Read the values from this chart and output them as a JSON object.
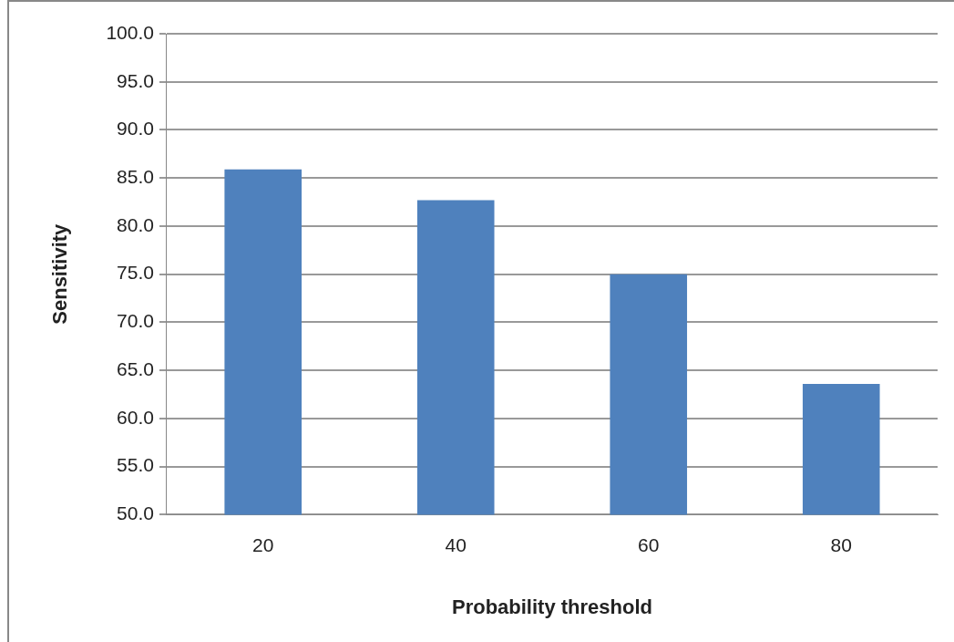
{
  "chart_data": {
    "type": "bar",
    "xlabel": "Probability threshold",
    "ylabel": "Sensitivity",
    "categories": [
      "20",
      "40",
      "60",
      "80"
    ],
    "values": [
      85.9,
      82.7,
      75.0,
      63.6
    ],
    "color": "#4f81bd",
    "ylim": [
      50,
      100
    ],
    "yticks": [
      {
        "value": 50,
        "label": "50.0"
      },
      {
        "value": 55,
        "label": "55.0"
      },
      {
        "value": 60,
        "label": "60.0"
      },
      {
        "value": 65,
        "label": "65.0"
      },
      {
        "value": 70,
        "label": "70.0"
      },
      {
        "value": 75,
        "label": "75.0"
      },
      {
        "value": 80,
        "label": "80.0"
      },
      {
        "value": 85,
        "label": "85.0"
      },
      {
        "value": 90,
        "label": "90.0"
      },
      {
        "value": 95,
        "label": "95.0"
      },
      {
        "value": 100,
        "label": "100.0"
      }
    ],
    "grid": "y",
    "legend": false
  }
}
